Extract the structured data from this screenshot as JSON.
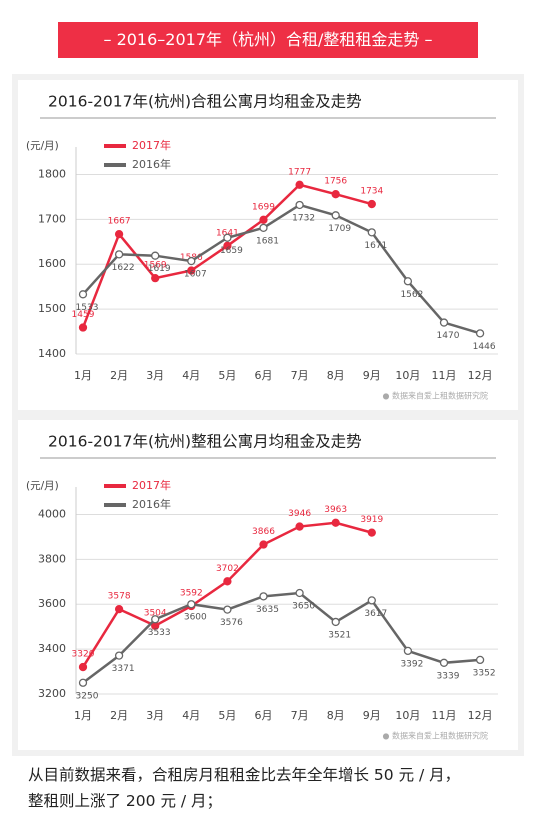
{
  "banner": "– 2016–2017年（杭州）合租/整租租金走势 –",
  "paragraph": [
    "从目前数据来看，合租房月租租金比去年全年增长 50 元 / 月，",
    "整租则上涨了 200 元 / 月；"
  ],
  "chart_data": [
    {
      "type": "line",
      "title": "2016-2017年(杭州)合租公寓月均租金及走势",
      "y_label": "(元/月)",
      "source": "● 数据来自爱上租数据研究院",
      "categories": [
        "1月",
        "2月",
        "3月",
        "4月",
        "5月",
        "6月",
        "7月",
        "8月",
        "9月",
        "10月",
        "11月",
        "12月"
      ],
      "series": [
        {
          "name": "2017年",
          "color": "#e8283f",
          "values": [
            1459,
            1667,
            1569,
            1586,
            1641,
            1699,
            1777,
            1756,
            1734,
            null,
            null,
            null
          ]
        },
        {
          "name": "2016年",
          "color": "#666666",
          "values": [
            1533,
            1622,
            1619,
            1607,
            1659,
            1681,
            1732,
            1709,
            1671,
            1562,
            1470,
            1446
          ]
        }
      ],
      "ylim": [
        1400,
        1850
      ],
      "yticks": [
        1400,
        1500,
        1600,
        1700,
        1800
      ],
      "grid": true
    },
    {
      "type": "line",
      "title": "2016-2017年(杭州)整租公寓月均租金及走势",
      "y_label": "(元/月)",
      "source": "● 数据来自爱上租数据研究院",
      "categories": [
        "1月",
        "2月",
        "3月",
        "4月",
        "5月",
        "6月",
        "7月",
        "8月",
        "9月",
        "10月",
        "11月",
        "12月"
      ],
      "series": [
        {
          "name": "2017年",
          "color": "#e8283f",
          "values": [
            3320,
            3578,
            3504,
            3592,
            3702,
            3866,
            3946,
            3963,
            3919,
            null,
            null,
            null
          ]
        },
        {
          "name": "2016年",
          "color": "#666666",
          "values": [
            3250,
            3371,
            3533,
            3600,
            3576,
            3635,
            3650,
            3521,
            3617,
            3392,
            3339,
            3352
          ]
        }
      ],
      "ylim": [
        3200,
        4100
      ],
      "yticks": [
        3200,
        3400,
        3600,
        3800,
        4000
      ],
      "grid": true
    }
  ]
}
